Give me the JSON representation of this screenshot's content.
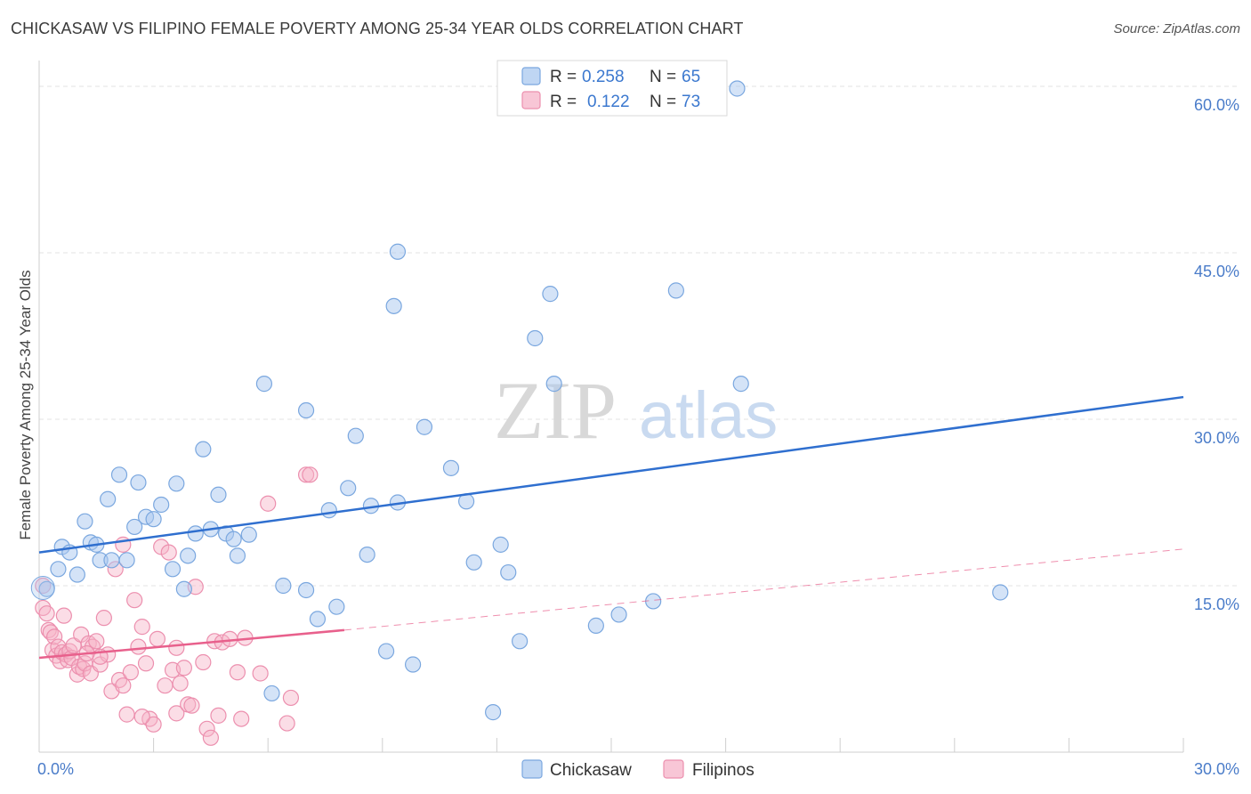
{
  "header": {
    "title": "CHICKASAW VS FILIPINO FEMALE POVERTY AMONG 25-34 YEAR OLDS CORRELATION CHART",
    "source": "Source: ZipAtlas.com"
  },
  "watermark": {
    "zip": "ZIP",
    "atlas": "atlas"
  },
  "legend": {
    "rows": [
      {
        "r_label": "R =",
        "r_value": "0.258",
        "n_label": "N =",
        "n_value": "65"
      },
      {
        "r_label": "R =",
        "r_value": "0.122",
        "n_label": "N =",
        "n_value": "73"
      }
    ]
  },
  "bottom_legend": [
    "Chickasaw",
    "Filipinos"
  ],
  "colors": {
    "chickasaw_fill": "#a9c8ef",
    "chickasaw_stroke": "#7aa7df",
    "chickasaw_line": "#2f6fcf",
    "filipinos_fill": "#f6b3c8",
    "filipinos_stroke": "#ec8fae",
    "filipinos_line": "#e8608c",
    "grid": "#e3e3e3",
    "tick_text": "#4a7cc9"
  },
  "chart_data": {
    "type": "scatter",
    "title": "CHICKASAW VS FILIPINO FEMALE POVERTY AMONG 25-34 YEAR OLDS CORRELATION CHART",
    "xlabel": "",
    "ylabel": "Female Poverty Among 25-34 Year Olds",
    "xlim": [
      0,
      30
    ],
    "ylim": [
      0,
      60
    ],
    "x_ticks": [
      "0.0%",
      "30.0%"
    ],
    "y_ticks": [
      "15.0%",
      "30.0%",
      "45.0%",
      "60.0%"
    ],
    "grid": true,
    "legend_position": "top-center",
    "series": [
      {
        "name": "Chickasaw",
        "r": 0.258,
        "n": 65,
        "trend": {
          "x": [
            0,
            30
          ],
          "y": [
            18.0,
            32.0
          ],
          "style": "solid"
        },
        "points": [
          [
            0.2,
            14.7
          ],
          [
            0.5,
            16.5
          ],
          [
            0.6,
            18.5
          ],
          [
            0.8,
            18.0
          ],
          [
            1.0,
            16.0
          ],
          [
            1.2,
            20.8
          ],
          [
            1.35,
            18.9
          ],
          [
            1.5,
            18.7
          ],
          [
            1.6,
            17.3
          ],
          [
            1.8,
            22.8
          ],
          [
            1.9,
            17.3
          ],
          [
            2.1,
            25.0
          ],
          [
            2.3,
            17.3
          ],
          [
            2.5,
            20.3
          ],
          [
            2.6,
            24.3
          ],
          [
            2.8,
            21.2
          ],
          [
            3.0,
            21.0
          ],
          [
            3.2,
            22.3
          ],
          [
            3.5,
            16.5
          ],
          [
            3.6,
            24.2
          ],
          [
            3.8,
            14.7
          ],
          [
            3.9,
            17.7
          ],
          [
            4.1,
            19.7
          ],
          [
            4.3,
            27.3
          ],
          [
            4.5,
            20.1
          ],
          [
            4.7,
            23.2
          ],
          [
            4.9,
            19.7
          ],
          [
            5.1,
            19.2
          ],
          [
            5.2,
            17.7
          ],
          [
            5.5,
            19.6
          ],
          [
            5.9,
            33.2
          ],
          [
            6.1,
            5.3
          ],
          [
            6.4,
            15.0
          ],
          [
            7.0,
            14.6
          ],
          [
            7.0,
            30.8
          ],
          [
            7.3,
            12.0
          ],
          [
            7.6,
            21.8
          ],
          [
            7.8,
            13.1
          ],
          [
            8.1,
            23.8
          ],
          [
            8.3,
            28.5
          ],
          [
            8.6,
            17.8
          ],
          [
            8.7,
            22.2
          ],
          [
            9.1,
            9.1
          ],
          [
            9.3,
            40.2
          ],
          [
            9.4,
            45.1
          ],
          [
            9.4,
            22.5
          ],
          [
            9.8,
            7.9
          ],
          [
            10.1,
            29.3
          ],
          [
            10.8,
            25.6
          ],
          [
            11.2,
            22.6
          ],
          [
            11.4,
            17.1
          ],
          [
            11.9,
            3.6
          ],
          [
            12.1,
            18.7
          ],
          [
            12.3,
            16.2
          ],
          [
            12.6,
            10.0
          ],
          [
            13.0,
            37.3
          ],
          [
            13.4,
            41.3
          ],
          [
            13.5,
            33.2
          ],
          [
            14.6,
            11.4
          ],
          [
            15.2,
            12.4
          ],
          [
            16.1,
            13.6
          ],
          [
            16.7,
            41.6
          ],
          [
            18.3,
            59.8
          ],
          [
            18.4,
            33.2
          ],
          [
            25.2,
            14.4
          ]
        ]
      },
      {
        "name": "Filipinos",
        "r": 0.122,
        "n": 73,
        "trend": {
          "x": [
            0,
            8
          ],
          "y": [
            8.5,
            11.0
          ],
          "style": "solid",
          "extended_x": [
            8,
            30
          ],
          "extended_y": [
            11.0,
            18.3
          ],
          "extended_style": "dashed"
        },
        "points": [
          [
            0.1,
            15.0
          ],
          [
            0.1,
            13.0
          ],
          [
            0.2,
            12.5
          ],
          [
            0.25,
            11.0
          ],
          [
            0.3,
            10.8
          ],
          [
            0.35,
            9.2
          ],
          [
            0.4,
            10.4
          ],
          [
            0.45,
            8.7
          ],
          [
            0.5,
            9.5
          ],
          [
            0.55,
            8.2
          ],
          [
            0.6,
            9.0
          ],
          [
            0.7,
            8.8
          ],
          [
            0.75,
            8.3
          ],
          [
            0.8,
            9.1
          ],
          [
            0.85,
            8.5
          ],
          [
            0.9,
            9.6
          ],
          [
            1.0,
            7.0
          ],
          [
            1.05,
            7.7
          ],
          [
            1.1,
            10.6
          ],
          [
            1.15,
            7.5
          ],
          [
            1.2,
            8.0
          ],
          [
            1.3,
            9.8
          ],
          [
            1.35,
            7.1
          ],
          [
            1.4,
            9.5
          ],
          [
            1.5,
            10.0
          ],
          [
            1.6,
            7.9
          ],
          [
            1.7,
            12.1
          ],
          [
            1.8,
            8.8
          ],
          [
            1.9,
            5.5
          ],
          [
            2.0,
            16.5
          ],
          [
            2.1,
            6.5
          ],
          [
            2.2,
            18.7
          ],
          [
            2.3,
            3.4
          ],
          [
            2.4,
            7.2
          ],
          [
            2.5,
            13.7
          ],
          [
            2.6,
            9.5
          ],
          [
            2.7,
            11.3
          ],
          [
            2.8,
            8.0
          ],
          [
            2.9,
            3.0
          ],
          [
            3.0,
            2.5
          ],
          [
            3.1,
            10.2
          ],
          [
            3.2,
            18.5
          ],
          [
            3.3,
            6.0
          ],
          [
            3.4,
            18.0
          ],
          [
            3.5,
            7.4
          ],
          [
            3.6,
            3.5
          ],
          [
            3.7,
            6.2
          ],
          [
            3.8,
            7.6
          ],
          [
            3.9,
            4.3
          ],
          [
            4.0,
            4.2
          ],
          [
            4.1,
            14.9
          ],
          [
            4.3,
            8.1
          ],
          [
            4.4,
            2.1
          ],
          [
            4.5,
            1.3
          ],
          [
            4.6,
            10.0
          ],
          [
            4.7,
            3.3
          ],
          [
            4.8,
            9.9
          ],
          [
            5.0,
            10.2
          ],
          [
            5.2,
            7.2
          ],
          [
            5.4,
            10.3
          ],
          [
            5.8,
            7.1
          ],
          [
            6.0,
            22.4
          ],
          [
            6.5,
            2.6
          ],
          [
            6.6,
            4.9
          ],
          [
            7.0,
            25.0
          ],
          [
            7.1,
            25.0
          ],
          [
            1.6,
            8.6
          ],
          [
            2.2,
            6.0
          ],
          [
            0.65,
            12.3
          ],
          [
            3.6,
            9.4
          ],
          [
            5.3,
            3.0
          ],
          [
            2.7,
            3.2
          ],
          [
            1.25,
            8.9
          ]
        ]
      }
    ]
  }
}
